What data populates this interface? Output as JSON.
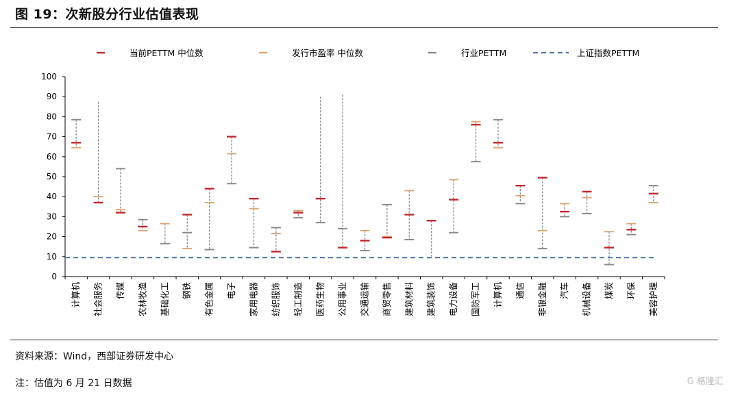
{
  "figure": {
    "title": "图 19：次新股分行业估值表现",
    "source": "资料来源：Wind，西部证券研发中心",
    "note": "注：估值为 6 月 21 日数据",
    "watermark": "G 格隆汇"
  },
  "colors": {
    "current_median": "#c0272d",
    "issue_pe_median": "#d9a87a",
    "industry_pe": "#8a8a8a",
    "index_pe": "#4a72a8"
  },
  "chart_data": {
    "type": "range",
    "ylim": [
      0,
      100
    ],
    "yticks": [
      0,
      10,
      20,
      30,
      40,
      50,
      60,
      70,
      80,
      90,
      100
    ],
    "xlabel": "",
    "ylabel": "",
    "legend_position": "top",
    "categories": [
      "计算机",
      "社会服务",
      "传媒",
      "农林牧渔",
      "基础化工",
      "钢铁",
      "有色金属",
      "电子",
      "家用电器",
      "纺织服饰",
      "轻工制造",
      "医药生物",
      "公用事业",
      "交通运输",
      "商贸零售",
      "建筑材料",
      "建筑装饰",
      "电力设备",
      "国防军工",
      "计算机",
      "通信",
      "非银金融",
      "汽车",
      "机械设备",
      "煤炭",
      "环保",
      "美容护理"
    ],
    "series": [
      {
        "name": "当前PETTM 中位数",
        "values": [
          67,
          37,
          32,
          25,
          null,
          31,
          44,
          70,
          39,
          12.5,
          32,
          39,
          14.5,
          18,
          19.5,
          31,
          28,
          38.5,
          76,
          67,
          45.5,
          49.5,
          32.5,
          42.5,
          14.5,
          23.5,
          41.5
        ]
      },
      {
        "name": "发行市盈率 中位数",
        "values": [
          64.5,
          40,
          33.5,
          23,
          26.5,
          14,
          37,
          61.5,
          34,
          21.5,
          33,
          null,
          null,
          23,
          20,
          43,
          null,
          48.5,
          77.5,
          64.5,
          40.5,
          23,
          36.5,
          39.5,
          22.5,
          26.5,
          37
        ]
      },
      {
        "name": "行业PETTM",
        "low": [
          64.5,
          37,
          32,
          23,
          16.5,
          14,
          13.5,
          46.5,
          14.5,
          12.5,
          29.5,
          27,
          14.5,
          13,
          19.5,
          18.5,
          10,
          22,
          57.5,
          64.5,
          36.5,
          14,
          30,
          31.5,
          6,
          21,
          37
        ],
        "high": [
          78.5,
          87.5,
          54,
          28.5,
          26.5,
          31,
          44,
          70,
          39,
          24.5,
          33,
          90,
          91,
          23,
          36,
          43,
          28,
          48.5,
          77.5,
          78.5,
          45.5,
          49.5,
          36.5,
          42.5,
          22.5,
          26.5,
          45.5
        ],
        "values": [
          78.5,
          null,
          54,
          28.5,
          16.5,
          22,
          13.5,
          46.5,
          14.5,
          24.5,
          29.5,
          27,
          24,
          13,
          36,
          18.5,
          null,
          22,
          57.5,
          78.5,
          36.5,
          14,
          30,
          31.5,
          6,
          21,
          45.5
        ]
      },
      {
        "name": "上证指数PETTM",
        "value": 9.5
      }
    ]
  }
}
